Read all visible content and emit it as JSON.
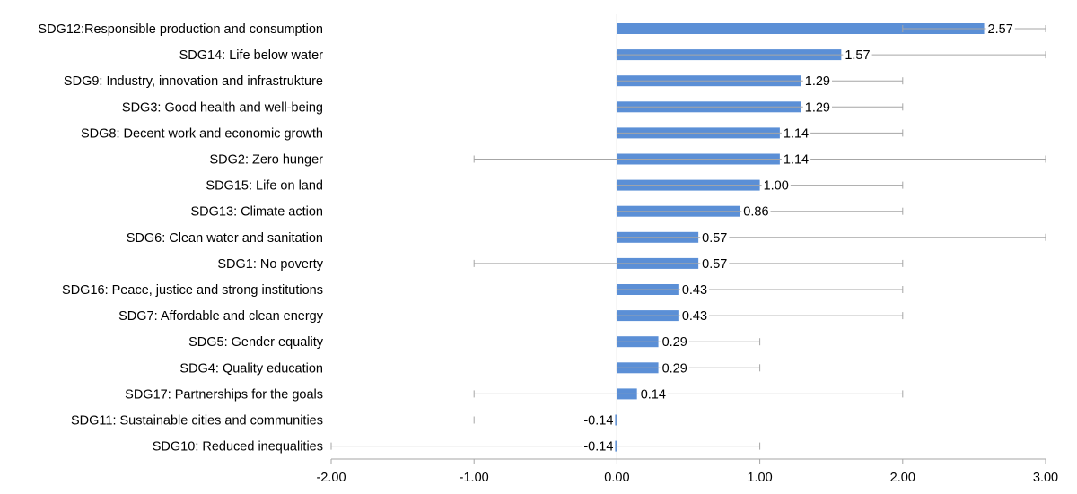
{
  "chart_data": {
    "type": "bar",
    "orientation": "horizontal",
    "title": "",
    "xlabel": "",
    "ylabel": "",
    "xlim": [
      -2.0,
      3.0
    ],
    "xticks": [
      "-2.00",
      "-1.00",
      "0.00",
      "1.00",
      "2.00",
      "3.00"
    ],
    "xtick_values": [
      -2,
      -1,
      0,
      1,
      2,
      3
    ],
    "grid": false,
    "legend": "none",
    "bar_color": "#5B8FD6",
    "errorbar_color": "#A6A6A6",
    "categories": [
      "SDG12:Responsible production and consumption",
      "SDG14: Life below water",
      "SDG9: Industry, innovation and infrastrukture",
      "SDG3: Good health and well-being",
      "SDG8: Decent work and economic growth",
      "SDG2: Zero hunger",
      "SDG15: Life on land",
      "SDG13: Climate action",
      "SDG6: Clean water and sanitation",
      "SDG1: No poverty",
      "SDG16: Peace, justice and strong institutions",
      "SDG7: Affordable and clean energy",
      "SDG5: Gender equality",
      "SDG4: Quality education",
      "SDG17: Partnerships for the goals",
      "SDG11: Sustainable cities and communities",
      "SDG10: Reduced inequalities"
    ],
    "values": [
      2.57,
      1.57,
      1.29,
      1.29,
      1.14,
      1.14,
      1.0,
      0.86,
      0.57,
      0.57,
      0.43,
      0.43,
      0.29,
      0.29,
      0.14,
      -0.14,
      -0.14
    ],
    "value_labels": [
      "2.57",
      "1.57",
      "1.29",
      "1.29",
      "1.14",
      "1.14",
      "1.00",
      "0.86",
      "0.57",
      "0.57",
      "0.43",
      "0.43",
      "0.29",
      "0.29",
      "0.14",
      "-0.14",
      "-0.14"
    ],
    "error_min": [
      2.0,
      0.0,
      0.0,
      0.0,
      0.0,
      -1.0,
      0.0,
      0.0,
      0.0,
      -1.0,
      0.0,
      0.0,
      0.0,
      0.0,
      -1.0,
      -1.0,
      -2.0
    ],
    "error_max": [
      3.0,
      3.0,
      2.0,
      2.0,
      2.0,
      3.0,
      2.0,
      2.0,
      3.0,
      2.0,
      2.0,
      2.0,
      1.0,
      1.0,
      2.0,
      0.0,
      1.0
    ]
  }
}
